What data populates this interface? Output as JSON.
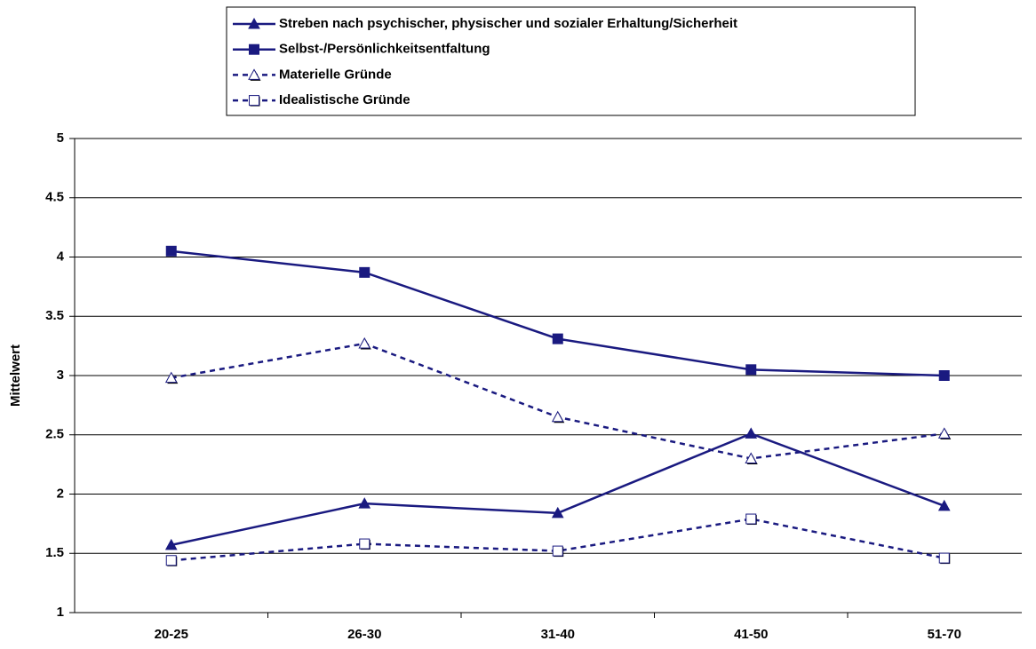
{
  "chart_data": {
    "type": "line",
    "y_label": "Mittelwert",
    "categories": [
      "20-25",
      "26-30",
      "31-40",
      "41-50",
      "51-70"
    ],
    "series": [
      {
        "name": "Streben nach psychischer, physischer und sozialer Erhaltung/Sicherheit",
        "color": "#1a1a80",
        "marker": "triangle",
        "filled": true,
        "dashed": false,
        "values": [
          1.57,
          1.92,
          1.84,
          2.51,
          1.9
        ]
      },
      {
        "name": "Selbst-/Persönlichkeitsentfaltung",
        "color": "#1a1a80",
        "marker": "square",
        "filled": true,
        "dashed": false,
        "values": [
          4.05,
          3.87,
          3.31,
          3.05,
          3.0
        ]
      },
      {
        "name": "Materielle Gründe",
        "color": "#1a1a80",
        "marker": "triangle",
        "filled": false,
        "dashed": true,
        "values": [
          2.98,
          3.27,
          2.65,
          2.3,
          2.51
        ]
      },
      {
        "name": "Idealistische Gründe",
        "color": "#1a1a80",
        "marker": "square",
        "filled": false,
        "dashed": true,
        "values": [
          1.44,
          1.58,
          1.52,
          1.79,
          1.46
        ]
      }
    ],
    "ylim": [
      1,
      5
    ],
    "yticks": [
      1,
      1.5,
      2,
      2.5,
      3,
      3.5,
      4,
      4.5,
      5
    ],
    "grid": true
  }
}
